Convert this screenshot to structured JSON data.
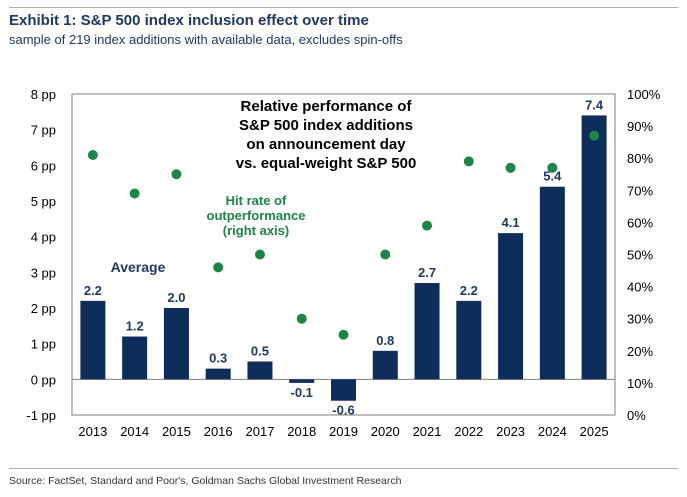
{
  "header": {
    "title": "Exhibit 1: S&P 500 index inclusion effect over time",
    "subtitle": "sample of 219 index additions with available data, excludes spin-offs"
  },
  "footer": {
    "source": "Source: FactSet, Standard and Poor's, Goldman Sachs Global Investment Research"
  },
  "colors": {
    "bar": "#0f2d5a",
    "dot": "#1e8449",
    "hit_rate_label": "#1e8449",
    "average_label": "#1f3864",
    "frame": "#7f7f7f"
  },
  "chart_data": {
    "type": "bar",
    "categories": [
      "2013",
      "2014",
      "2015",
      "2016",
      "2017",
      "2018",
      "2019",
      "2020",
      "2021",
      "2022",
      "2023",
      "2024",
      "2025"
    ],
    "series": [
      {
        "name": "Relative performance of S&P 500 index additions on announcement day vs. equal-weight S&P 500",
        "axis": "left",
        "type": "bar",
        "values": [
          2.2,
          1.2,
          2.0,
          0.3,
          0.5,
          -0.1,
          -0.6,
          0.8,
          2.7,
          2.2,
          4.1,
          5.4,
          7.4
        ],
        "labels": [
          "2.2",
          "1.2",
          "2.0",
          "0.3",
          "0.5",
          "-0.1",
          "-0.6",
          "0.8",
          "2.7",
          "2.2",
          "4.1",
          "5.4",
          "7.4"
        ]
      },
      {
        "name": "Hit rate of outperformance (right axis)",
        "axis": "right",
        "type": "scatter",
        "values": [
          81,
          69,
          75,
          46,
          50,
          30,
          25,
          50,
          59,
          79,
          77,
          77,
          87
        ]
      }
    ],
    "y_left": {
      "range": [
        -1,
        8
      ],
      "ticks": [
        -1,
        0,
        1,
        2,
        3,
        4,
        5,
        6,
        7,
        8
      ],
      "tick_labels": [
        "-1 pp",
        "0 pp",
        "1 pp",
        "2 pp",
        "3 pp",
        "4 pp",
        "5 pp",
        "6 pp",
        "7 pp",
        "8 pp"
      ]
    },
    "y_right": {
      "range": [
        0,
        100
      ],
      "ticks": [
        0,
        10,
        20,
        30,
        40,
        50,
        60,
        70,
        80,
        90,
        100
      ],
      "tick_labels": [
        "0%",
        "10%",
        "20%",
        "30%",
        "40%",
        "50%",
        "60%",
        "70%",
        "80%",
        "90%",
        "100%"
      ]
    },
    "annotations": {
      "bar_title": [
        "Relative performance of",
        "S&P 500 index additions",
        "on announcement day",
        "vs. equal-weight S&P 500"
      ],
      "hit_rate": [
        "Hit rate of",
        "outperformance",
        "(right axis)"
      ],
      "average": "Average"
    }
  }
}
